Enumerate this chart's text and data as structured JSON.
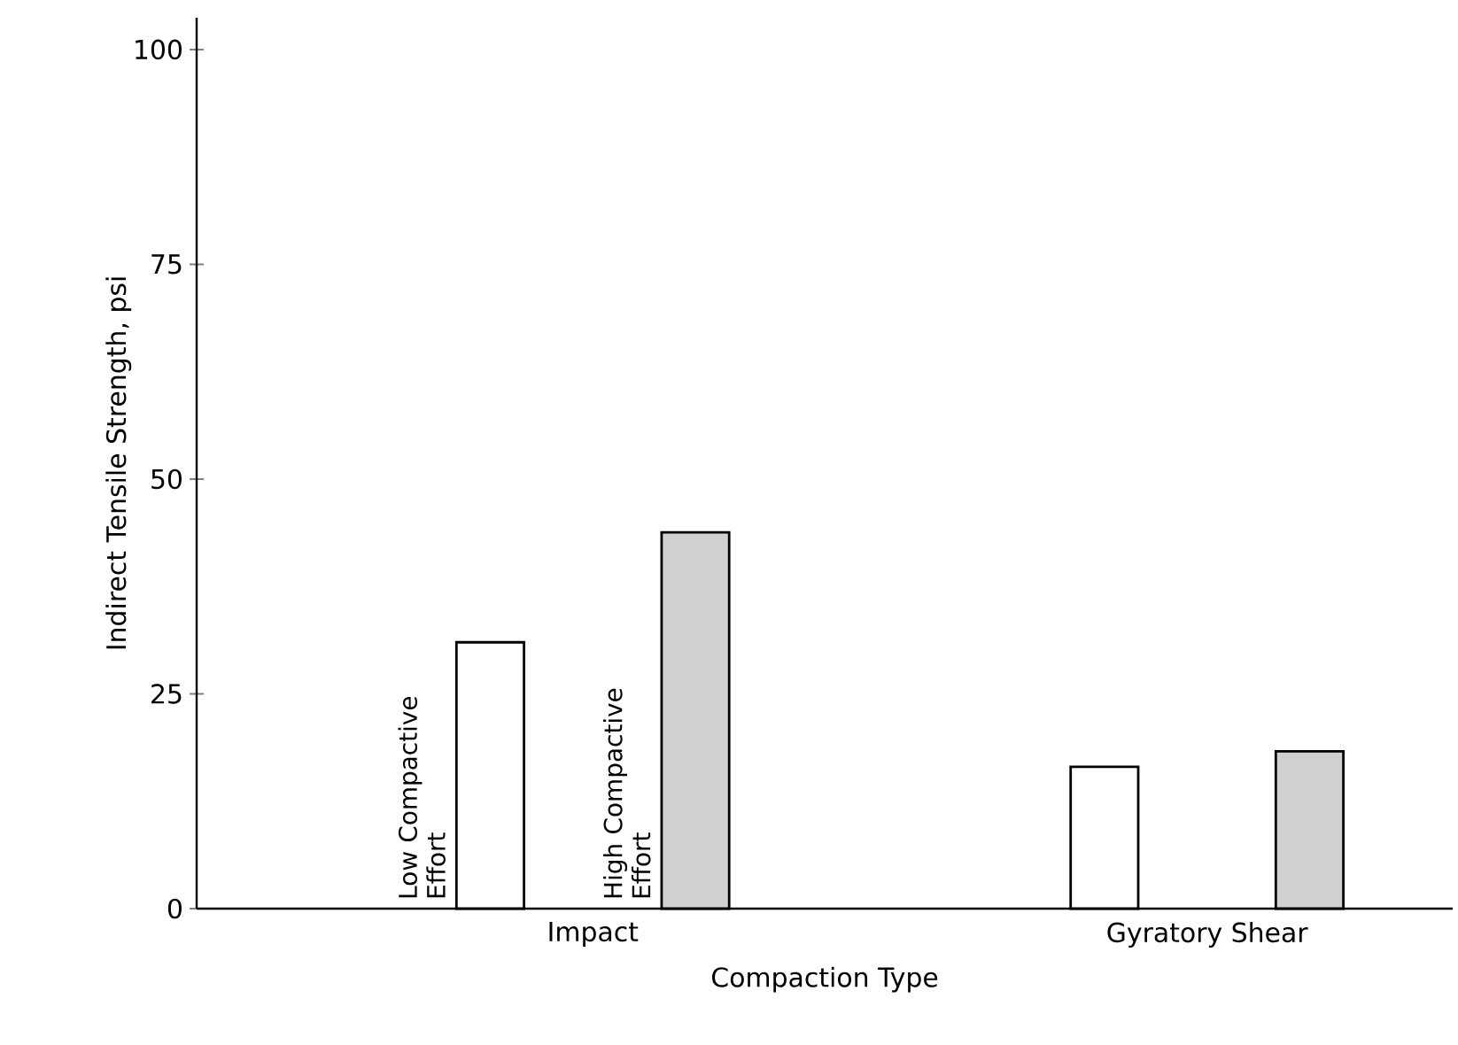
{
  "chart_data": {
    "type": "bar",
    "xlabel": "Compaction Type",
    "ylabel": "Indirect Tensile Strength, psi",
    "categories": [
      "Impact",
      "Gyratory Shear"
    ],
    "series": [
      {
        "name": "Low Compactive Effort",
        "color": "#ffffff",
        "values": [
          31,
          16.5
        ]
      },
      {
        "name": "High Compactive Effort",
        "color": "#d0d0d0",
        "values": [
          43.8,
          18.3
        ]
      }
    ],
    "ylim": [
      0,
      103.7
    ],
    "yticks": [
      0,
      25,
      50,
      75,
      100
    ]
  }
}
